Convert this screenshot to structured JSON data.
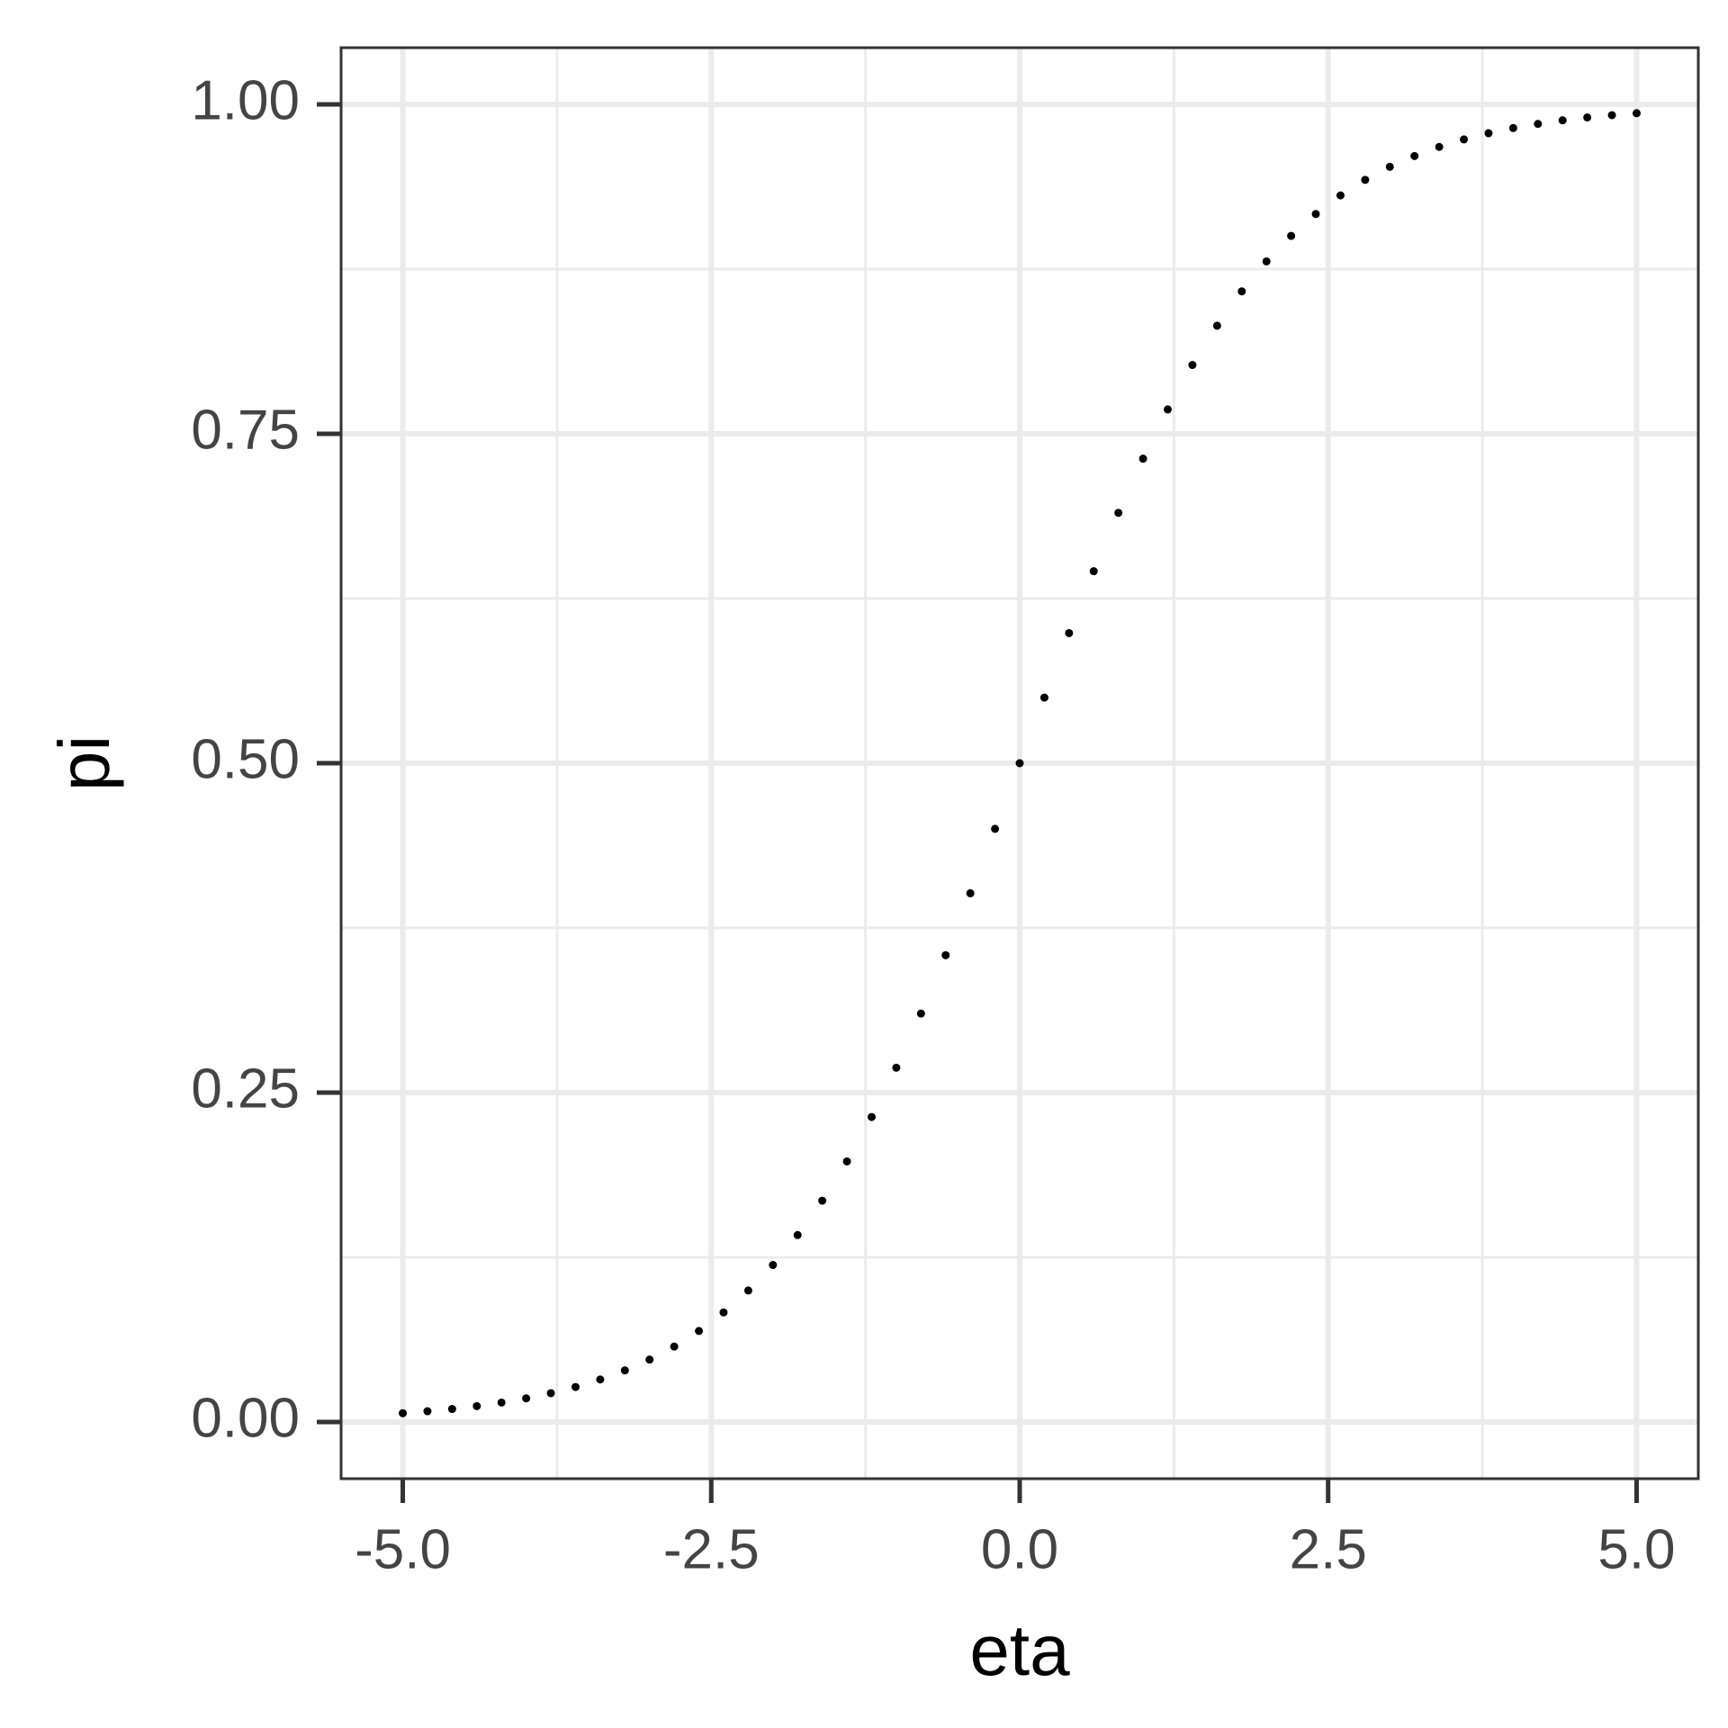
{
  "chart_data": {
    "type": "scatter",
    "x_label": "eta",
    "y_label": "pi",
    "x": [
      -5,
      -4.8,
      -4.6,
      -4.4,
      -4.2,
      -4,
      -3.8,
      -3.6,
      -3.4,
      -3.2,
      -3,
      -2.8,
      -2.6,
      -2.4,
      -2.2,
      -2,
      -1.8,
      -1.6,
      -1.4,
      -1.2,
      -1,
      -0.8,
      -0.6,
      -0.4,
      -0.2,
      0,
      0.2,
      0.4,
      0.6,
      0.8,
      1,
      1.2,
      1.4,
      1.6,
      1.8,
      2,
      2.2,
      2.4,
      2.6,
      2.8,
      3,
      3.2,
      3.4,
      3.6,
      3.8,
      4,
      4.2,
      4.4,
      4.6,
      4.8,
      5
    ],
    "values": [
      0.0067,
      0.0082,
      0.0099,
      0.0121,
      0.0148,
      0.018,
      0.0219,
      0.0266,
      0.0323,
      0.0392,
      0.0474,
      0.0573,
      0.0691,
      0.0832,
      0.0998,
      0.1192,
      0.1419,
      0.168,
      0.1978,
      0.2315,
      0.2689,
      0.31,
      0.3543,
      0.4013,
      0.4502,
      0.5,
      0.5498,
      0.5987,
      0.6457,
      0.69,
      0.7311,
      0.7685,
      0.8022,
      0.832,
      0.8581,
      0.8808,
      0.9002,
      0.9168,
      0.9309,
      0.9427,
      0.9526,
      0.9608,
      0.9677,
      0.9734,
      0.9781,
      0.982,
      0.9852,
      0.9879,
      0.9901,
      0.9918,
      0.9933
    ],
    "color": "#000000",
    "xlim": [
      -5.5,
      5.5
    ],
    "ylim": [
      -0.043,
      1.043
    ],
    "xticks": [
      {
        "value": -5,
        "label": "-5.0"
      },
      {
        "value": -2.5,
        "label": "-2.5"
      },
      {
        "value": 0,
        "label": "0.0"
      },
      {
        "value": 2.5,
        "label": "2.5"
      },
      {
        "value": 5,
        "label": "5.0"
      }
    ],
    "yticks": [
      {
        "value": 0,
        "label": "0.00"
      },
      {
        "value": 0.25,
        "label": "0.25"
      },
      {
        "value": 0.5,
        "label": "0.50"
      },
      {
        "value": 0.75,
        "label": "0.75"
      },
      {
        "value": 1,
        "label": "1.00"
      }
    ],
    "x_minor_grid": [
      -3.75,
      -1.25,
      1.25,
      3.75
    ],
    "y_minor_grid": [
      0.125,
      0.375,
      0.625,
      0.875
    ],
    "grid": true
  }
}
